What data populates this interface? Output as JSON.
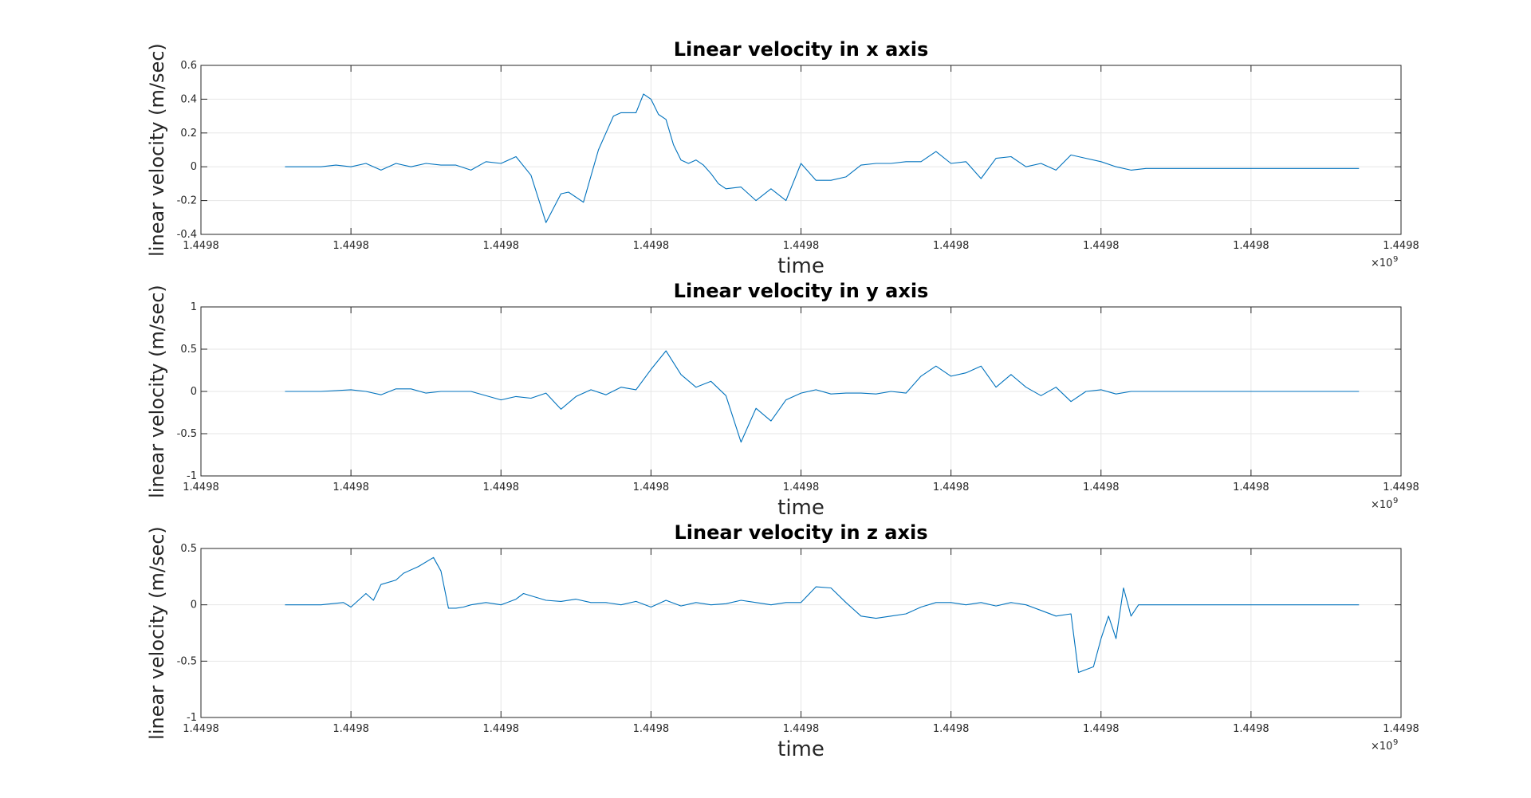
{
  "chart_data": [
    {
      "type": "line",
      "title": "Linear velocity in x axis",
      "xlabel": "time",
      "ylabel": "linear velocity (m/sec)",
      "x_exponent": "9",
      "x_tick_labels": [
        "1.4498",
        "1.4498",
        "1.4498",
        "1.4498",
        "1.4498",
        "1.4498",
        "1.4498",
        "1.4498",
        "1.4498"
      ],
      "ylim": [
        -0.4,
        0.6
      ],
      "y_ticks": [
        -0.4,
        -0.2,
        0,
        0.2,
        0.4,
        0.6
      ],
      "y_tick_labels": [
        "-0.4",
        "-0.2",
        "0",
        "0.2",
        "0.4",
        "0.6"
      ],
      "xlim": [
        0,
        8
      ],
      "grid": true,
      "color": "#0072BD",
      "series": [
        {
          "x": [
            0.56,
            0.8,
            0.9,
            1.0,
            1.1,
            1.2,
            1.3,
            1.4,
            1.5,
            1.6,
            1.7,
            1.8,
            1.9,
            2.0,
            2.1,
            2.2,
            2.3,
            2.4,
            2.45,
            2.55,
            2.65,
            2.75,
            2.8,
            2.9,
            2.95,
            3.0,
            3.05,
            3.1,
            3.15,
            3.2,
            3.25,
            3.3,
            3.35,
            3.4,
            3.45,
            3.5,
            3.6,
            3.7,
            3.8,
            3.9,
            4.0,
            4.1,
            4.2,
            4.3,
            4.4,
            4.5,
            4.6,
            4.7,
            4.8,
            4.9,
            5.0,
            5.1,
            5.2,
            5.3,
            5.4,
            5.5,
            5.6,
            5.7,
            5.8,
            5.9,
            6.0,
            6.1,
            6.2,
            6.3,
            6.4,
            6.5,
            6.6,
            6.7,
            6.8,
            6.9,
            7.0,
            7.2,
            7.72
          ],
          "y": [
            0,
            0,
            0.01,
            0,
            0.02,
            -0.02,
            0.02,
            0,
            0.02,
            0.01,
            0.01,
            -0.02,
            0.03,
            0.02,
            0.06,
            -0.05,
            -0.33,
            -0.16,
            -0.15,
            -0.21,
            0.1,
            0.3,
            0.32,
            0.32,
            0.43,
            0.4,
            0.31,
            0.28,
            0.13,
            0.04,
            0.02,
            0.04,
            0.01,
            -0.04,
            -0.1,
            -0.13,
            -0.12,
            -0.2,
            -0.13,
            -0.2,
            0.02,
            -0.08,
            -0.08,
            -0.06,
            0.01,
            0.02,
            0.02,
            0.03,
            0.03,
            0.09,
            0.02,
            0.03,
            -0.07,
            0.05,
            0.06,
            0.0,
            0.02,
            -0.02,
            0.07,
            0.05,
            0.03,
            0,
            -0.02,
            -0.01,
            -0.01,
            -0.01,
            -0.01,
            -0.01,
            -0.01,
            -0.01,
            -0.01,
            -0.01,
            -0.01
          ]
        }
      ]
    },
    {
      "type": "line",
      "title": "Linear velocity in y axis",
      "xlabel": "time",
      "ylabel": "linear velocity (m/sec)",
      "x_exponent": "9",
      "x_tick_labels": [
        "1.4498",
        "1.4498",
        "1.4498",
        "1.4498",
        "1.4498",
        "1.4498",
        "1.4498",
        "1.4498",
        "1.4498"
      ],
      "ylim": [
        -1,
        1
      ],
      "y_ticks": [
        -1,
        -0.5,
        0,
        0.5,
        1
      ],
      "y_tick_labels": [
        "-1",
        "-0.5",
        "0",
        "0.5",
        "1"
      ],
      "xlim": [
        0,
        8
      ],
      "grid": true,
      "color": "#0072BD",
      "series": [
        {
          "x": [
            0.56,
            0.8,
            1.0,
            1.1,
            1.2,
            1.3,
            1.4,
            1.5,
            1.6,
            1.8,
            2.0,
            2.1,
            2.2,
            2.3,
            2.4,
            2.5,
            2.6,
            2.7,
            2.8,
            2.9,
            3.0,
            3.1,
            3.2,
            3.3,
            3.4,
            3.5,
            3.6,
            3.7,
            3.8,
            3.9,
            4.0,
            4.1,
            4.2,
            4.3,
            4.4,
            4.5,
            4.6,
            4.7,
            4.8,
            4.9,
            5.0,
            5.1,
            5.2,
            5.3,
            5.4,
            5.5,
            5.6,
            5.7,
            5.8,
            5.9,
            6.0,
            6.1,
            6.2,
            6.3,
            6.4,
            6.5,
            6.6,
            6.7,
            7.0,
            7.3,
            7.72
          ],
          "y": [
            0,
            0,
            0.02,
            0,
            -0.04,
            0.03,
            0.03,
            -0.02,
            0,
            0,
            -0.1,
            -0.06,
            -0.08,
            -0.02,
            -0.21,
            -0.06,
            0.02,
            -0.04,
            0.05,
            0.02,
            0.26,
            0.48,
            0.2,
            0.05,
            0.12,
            -0.05,
            -0.6,
            -0.2,
            -0.35,
            -0.1,
            -0.02,
            0.02,
            -0.03,
            -0.02,
            -0.02,
            -0.03,
            0.0,
            -0.02,
            0.18,
            0.3,
            0.18,
            0.22,
            0.3,
            0.05,
            0.2,
            0.05,
            -0.05,
            0.05,
            -0.12,
            0.0,
            0.02,
            -0.03,
            0,
            0,
            0,
            0,
            0,
            0,
            0,
            0,
            0
          ]
        }
      ]
    },
    {
      "type": "line",
      "title": "Linear velocity in z axis",
      "xlabel": "time",
      "ylabel": "linear velocity (m/sec)",
      "x_exponent": "9",
      "x_tick_labels": [
        "1.4498",
        "1.4498",
        "1.4498",
        "1.4498",
        "1.4498",
        "1.4498",
        "1.4498",
        "1.4498",
        "1.4498"
      ],
      "ylim": [
        -1,
        0.5
      ],
      "y_ticks": [
        -1,
        -0.5,
        0,
        0.5
      ],
      "y_tick_labels": [
        "-1",
        "-0.5",
        "0",
        "0.5"
      ],
      "xlim": [
        0,
        8
      ],
      "grid": true,
      "color": "#0072BD",
      "series": [
        {
          "x": [
            0.56,
            0.8,
            0.95,
            1.0,
            1.1,
            1.15,
            1.2,
            1.3,
            1.35,
            1.45,
            1.55,
            1.6,
            1.65,
            1.7,
            1.75,
            1.8,
            1.9,
            2.0,
            2.1,
            2.15,
            2.2,
            2.3,
            2.4,
            2.5,
            2.6,
            2.7,
            2.8,
            2.9,
            3.0,
            3.1,
            3.2,
            3.3,
            3.4,
            3.5,
            3.6,
            3.7,
            3.8,
            3.9,
            4.0,
            4.1,
            4.2,
            4.3,
            4.4,
            4.5,
            4.6,
            4.7,
            4.8,
            4.9,
            5.0,
            5.1,
            5.2,
            5.3,
            5.4,
            5.5,
            5.6,
            5.7,
            5.8,
            5.85,
            5.95,
            6.0,
            6.05,
            6.1,
            6.15,
            6.2,
            6.25,
            6.3,
            6.35,
            6.4,
            6.45,
            6.5,
            6.6,
            6.8,
            7.72
          ],
          "y": [
            0,
            0,
            0.02,
            -0.02,
            0.1,
            0.04,
            0.18,
            0.22,
            0.28,
            0.34,
            0.42,
            0.3,
            -0.03,
            -0.03,
            -0.02,
            0,
            0.02,
            0.0,
            0.05,
            0.1,
            0.08,
            0.04,
            0.03,
            0.05,
            0.02,
            0.02,
            0.0,
            0.03,
            -0.02,
            0.04,
            -0.01,
            0.02,
            0.0,
            0.01,
            0.04,
            0.02,
            0.0,
            0.02,
            0.02,
            0.16,
            0.15,
            0.02,
            -0.1,
            -0.12,
            -0.1,
            -0.08,
            -0.02,
            0.02,
            0.02,
            0.0,
            0.02,
            -0.01,
            0.02,
            0.0,
            -0.05,
            -0.1,
            -0.08,
            -0.6,
            -0.55,
            -0.3,
            -0.1,
            -0.3,
            0.15,
            -0.1,
            0.0,
            0,
            0,
            0,
            0,
            0,
            0,
            0,
            0
          ]
        }
      ]
    }
  ]
}
